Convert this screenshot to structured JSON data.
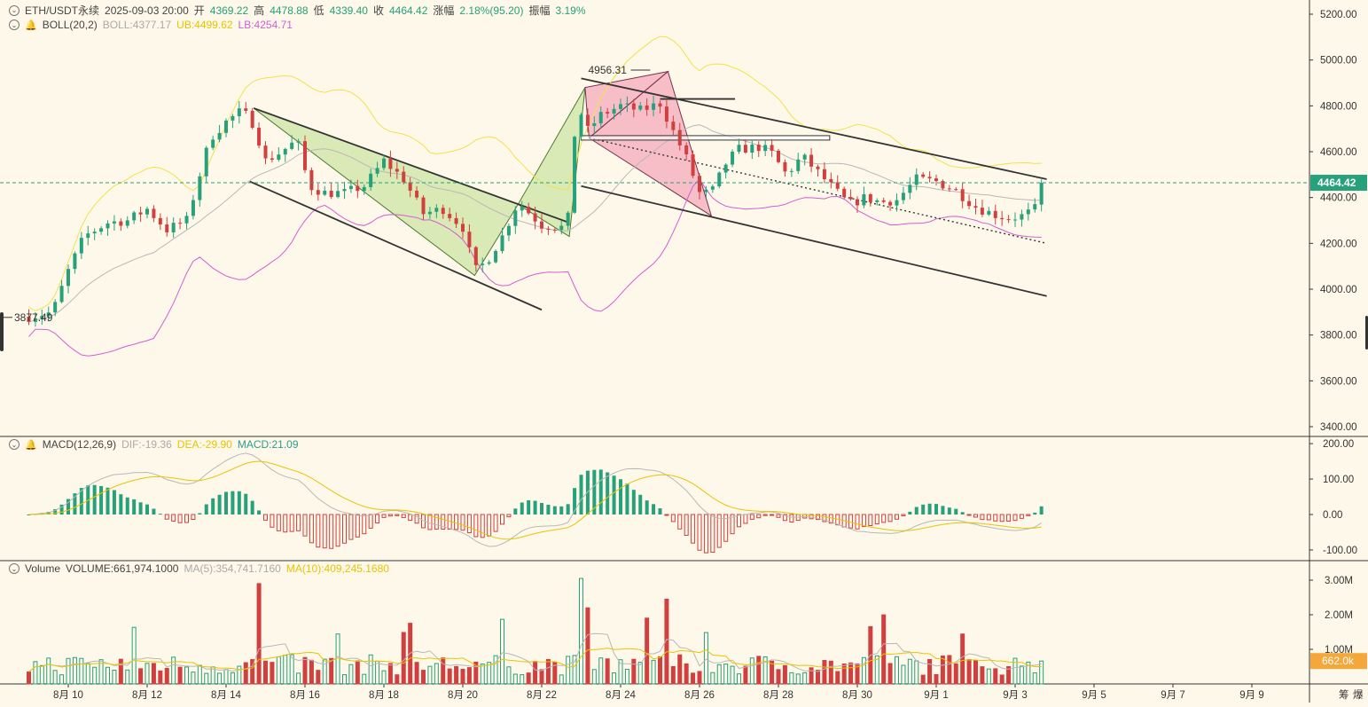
{
  "header": {
    "symbol": "ETH/USDT永续",
    "datetime": "2025-09-03 20:00",
    "open_label": "开",
    "open": "4369.22",
    "high_label": "高",
    "high": "4478.88",
    "low_label": "低",
    "low": "4339.40",
    "close_label": "收",
    "close": "4464.42",
    "change_label": "涨幅",
    "change": "2.18%(95.20)",
    "amp_label": "振幅",
    "amp": "3.19%"
  },
  "boll": {
    "name": "BOLL(20,2)",
    "mid": "BOLL:4377.17",
    "ub": "UB:4499.62",
    "lb": "LB:4254.71"
  },
  "macd": {
    "name": "MACD(12,26,9)",
    "dif": "DIF:-19.36",
    "dea": "DEA:-29.90",
    "macd": "MACD:21.09"
  },
  "volume": {
    "name": "Volume",
    "vol": "VOLUME:661,974.1000",
    "ma5": "MA(5):354,741.7160",
    "ma10": "MA(10):409,245.1680"
  },
  "colors": {
    "up": "#26a17b",
    "down": "#d23f3f",
    "boll_mid": "#b8b8b8",
    "boll_ub": "#f1e24a",
    "boll_lb": "#d15fd1",
    "background": "#fdf8e9"
  },
  "chart_data": [
    {
      "type": "candlestick",
      "title": "ETH/USDT永续",
      "y_ticks": [
        "5200.00",
        "5000.00",
        "4800.00",
        "4600.00",
        "4400.00",
        "4200.00",
        "4000.00",
        "3800.00",
        "3600.00",
        "3400.00"
      ],
      "ylim": [
        3400,
        5200
      ],
      "x_ticks": [
        "8月 10",
        "8月 12",
        "8月 14",
        "8月 16",
        "8月 18",
        "8月 20",
        "8月 22",
        "8月 24",
        "8月 26",
        "8月 28",
        "8月 30",
        "9月 1",
        "9月 3",
        "9月 5",
        "9月 7",
        "9月 9"
      ],
      "x_range_days": [
        9.6,
        41.0
      ],
      "current_price": "4464.42",
      "annotations": {
        "high": "4956.31",
        "low": "3877.49"
      },
      "candles_keypoints": [
        [
          9.0,
          3880
        ],
        [
          9.6,
          3900
        ],
        [
          10.0,
          4080
        ],
        [
          10.4,
          4230
        ],
        [
          11.0,
          4290
        ],
        [
          11.5,
          4300
        ],
        [
          12.0,
          4350
        ],
        [
          12.5,
          4260
        ],
        [
          13.0,
          4300
        ],
        [
          13.3,
          4480
        ],
        [
          13.6,
          4660
        ],
        [
          14.0,
          4730
        ],
        [
          14.4,
          4780
        ],
        [
          14.7,
          4720
        ],
        [
          15.0,
          4560
        ],
        [
          15.4,
          4600
        ],
        [
          15.8,
          4650
        ],
        [
          16.1,
          4450
        ],
        [
          16.5,
          4420
        ],
        [
          17.0,
          4420
        ],
        [
          17.5,
          4450
        ],
        [
          18.0,
          4560
        ],
        [
          18.5,
          4480
        ],
        [
          19.0,
          4330
        ],
        [
          19.5,
          4350
        ],
        [
          20.0,
          4270
        ],
        [
          20.3,
          4080
        ],
        [
          20.6,
          4120
        ],
        [
          21.0,
          4230
        ],
        [
          21.4,
          4380
        ],
        [
          22.0,
          4280
        ],
        [
          22.5,
          4270
        ],
        [
          22.7,
          4320
        ],
        [
          22.9,
          4850
        ],
        [
          23.1,
          4680
        ],
        [
          23.5,
          4760
        ],
        [
          24.0,
          4800
        ],
        [
          24.5,
          4780
        ],
        [
          25.0,
          4810
        ],
        [
          25.3,
          4700
        ],
        [
          25.7,
          4560
        ],
        [
          26.0,
          4420
        ],
        [
          26.3,
          4420
        ],
        [
          26.7,
          4560
        ],
        [
          27.0,
          4610
        ],
        [
          27.5,
          4620
        ],
        [
          27.8,
          4600
        ],
        [
          28.2,
          4500
        ],
        [
          28.6,
          4580
        ],
        [
          29.0,
          4510
        ],
        [
          29.5,
          4420
        ],
        [
          29.8,
          4370
        ],
        [
          30.2,
          4400
        ],
        [
          30.6,
          4380
        ],
        [
          31.0,
          4390
        ],
        [
          31.5,
          4480
        ],
        [
          32.0,
          4470
        ],
        [
          32.5,
          4430
        ],
        [
          33.0,
          4360
        ],
        [
          33.4,
          4330
        ],
        [
          33.8,
          4310
        ],
        [
          34.2,
          4320
        ],
        [
          34.5,
          4350
        ],
        [
          34.8,
          4464
        ]
      ]
    },
    {
      "type": "bar",
      "title": "MACD(12,26,9)",
      "y_ticks": [
        "200.00",
        "100.00",
        "0.00",
        "-100.00"
      ],
      "ylim": [
        -130,
        215
      ]
    },
    {
      "type": "bar",
      "title": "Volume",
      "y_ticks": [
        "3.00M",
        "2.00M",
        "1.00M"
      ],
      "ylim": [
        0,
        3.3
      ],
      "current_volume": "662.0k"
    }
  ]
}
